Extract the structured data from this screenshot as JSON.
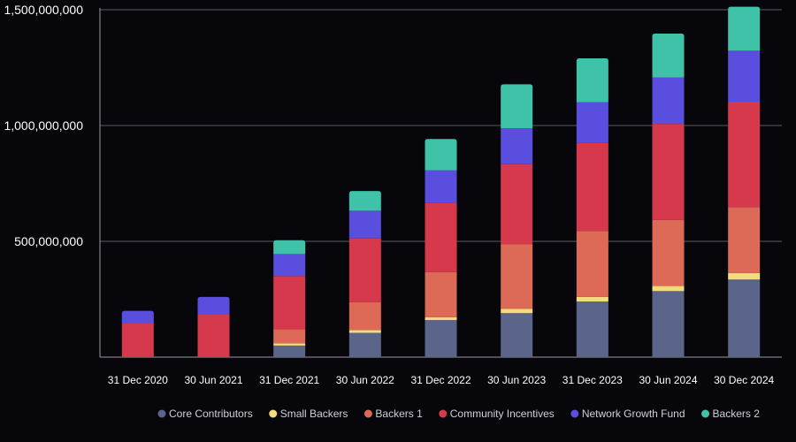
{
  "chart_data": {
    "type": "bar",
    "stacked": true,
    "categories": [
      "31 Dec 2020",
      "30 Jun 2021",
      "31 Dec 2021",
      "30 Jun 2022",
      "31 Dec 2022",
      "30 Jun 2023",
      "31 Dec 2023",
      "30 Jun 2024",
      "30 Dec 2024"
    ],
    "series": [
      {
        "name": "Core Contributors",
        "color": "#5b6489",
        "values": [
          0,
          0,
          50000000,
          105000000,
          160000000,
          190000000,
          240000000,
          285000000,
          335000000
        ]
      },
      {
        "name": "Small Backers",
        "color": "#f3dc7c",
        "values": [
          0,
          0,
          10000000,
          12000000,
          12000000,
          18000000,
          20000000,
          22000000,
          28000000
        ]
      },
      {
        "name": "Backers 1",
        "color": "#dd6a56",
        "values": [
          0,
          0,
          60000000,
          120000000,
          195000000,
          280000000,
          285000000,
          285000000,
          285000000
        ]
      },
      {
        "name": "Community Incentives",
        "color": "#d5394b",
        "values": [
          145000000,
          185000000,
          230000000,
          275000000,
          300000000,
          345000000,
          380000000,
          415000000,
          455000000
        ]
      },
      {
        "name": "Network Growth Fund",
        "color": "#5a4ede",
        "values": [
          55000000,
          75000000,
          95000000,
          120000000,
          140000000,
          155000000,
          175000000,
          200000000,
          220000000
        ]
      },
      {
        "name": "Backers 2",
        "color": "#40c2a8",
        "values": [
          0,
          0,
          60000000,
          85000000,
          135000000,
          190000000,
          190000000,
          190000000,
          190000000
        ]
      }
    ],
    "yticks": [
      "1,500,000,000",
      "1,000,000,000",
      "500,000,000"
    ],
    "ytick_values": [
      1500000000,
      1000000000,
      500000000
    ],
    "ylim": [
      0,
      1500000000
    ],
    "grid": true,
    "legend": "bottom"
  }
}
